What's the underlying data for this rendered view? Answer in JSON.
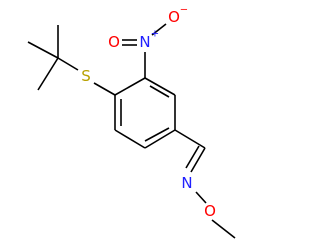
{
  "atoms": [
    {
      "label": "S"
    },
    {
      "label": "N",
      "charge": "+"
    },
    {
      "label": "O",
      "charge": "−"
    },
    {
      "label": "O"
    },
    {
      "label": "N"
    },
    {
      "label": "O"
    }
  ]
}
